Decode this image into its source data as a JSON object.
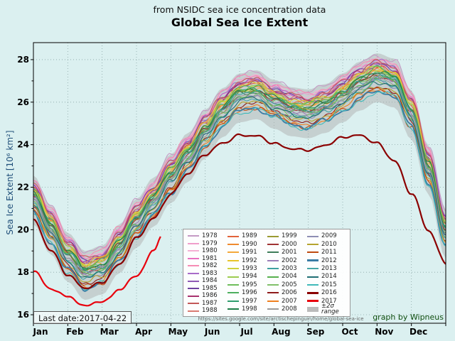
{
  "title": "Global Sea Ice Extent",
  "subtitle": "from NSIDC sea ice concentration data",
  "footer": {
    "last_date_label": "Last date:2017-04-22",
    "url": "https://sites.google.com/site/arctischepinguin/home/global-sea-ice",
    "credit": "graph by Wipneus"
  },
  "colors": {
    "background": "#dbf0f0",
    "grid": "#8aa5a5",
    "band_fill": "#b0b0b0",
    "band_swatch": "#bbbbbb",
    "frame": "#000000",
    "axis_label_blue": "#1f4e79",
    "url_gray": "#666666",
    "credit_green": "#0e4d0e"
  },
  "chart_data": {
    "type": "line",
    "title": "Global Sea Ice Extent",
    "subtitle": "from NSIDC sea ice concentration data",
    "xlabel": "",
    "ylabel": "Sea Ice Extent [10⁶ km²]",
    "x_tick_labels": [
      "Jan",
      "Feb",
      "Mar",
      "Apr",
      "May",
      "Jun",
      "Jul",
      "Aug",
      "Sep",
      "Oct",
      "Nov",
      "Dec"
    ],
    "y_ticks": [
      16,
      18,
      20,
      22,
      24,
      26,
      28
    ],
    "ylim": [
      15.6,
      28.8
    ],
    "grid": "dotted",
    "legend_position": "lower center",
    "band_label": "±2σ range",
    "sigma2": 1.15,
    "wiggle_amp": 0.09,
    "climatology": {
      "t_months": [
        0,
        0.5,
        1,
        1.5,
        2,
        2.5,
        3,
        3.5,
        4,
        4.5,
        5,
        5.5,
        6,
        6.5,
        7,
        7.5,
        8,
        8.5,
        9,
        9.5,
        10,
        10.5,
        11,
        11.5,
        12
      ],
      "extent": [
        21.4,
        20.0,
        18.7,
        17.85,
        18.1,
        19.1,
        20.3,
        21.3,
        22.4,
        23.4,
        24.5,
        25.5,
        26.2,
        26.35,
        25.9,
        25.55,
        25.45,
        25.7,
        26.2,
        26.75,
        27.15,
        26.9,
        25.4,
        22.8,
        19.8
      ]
    },
    "years": [
      {
        "year": "1978",
        "color": "#c49ac4",
        "anomaly": 1.05
      },
      {
        "year": "1979",
        "color": "#ef9ecb",
        "anomaly": 0.85
      },
      {
        "year": "1980",
        "color": "#f4b0d4",
        "anomaly": 0.85
      },
      {
        "year": "1981",
        "color": "#e86fc0",
        "anomaly": 0.75
      },
      {
        "year": "1982",
        "color": "#f58cb4",
        "anomaly": 0.95
      },
      {
        "year": "1983",
        "color": "#a86bc9",
        "anomaly": 0.75
      },
      {
        "year": "1984",
        "color": "#8f5bb5",
        "anomaly": 0.65
      },
      {
        "year": "1985",
        "color": "#6f42a0",
        "anomaly": 0.7
      },
      {
        "year": "1986",
        "color": "#a8326e",
        "anomaly": 0.6
      },
      {
        "year": "1987",
        "color": "#c25858",
        "anomaly": 0.75
      },
      {
        "year": "1988",
        "color": "#d97b72",
        "anomaly": 0.6
      },
      {
        "year": "1989",
        "color": "#e2633a",
        "anomaly": 0.45
      },
      {
        "year": "1990",
        "color": "#ef8a2e",
        "anomaly": 0.35
      },
      {
        "year": "1991",
        "color": "#f3a93a",
        "anomaly": 0.35
      },
      {
        "year": "1992",
        "color": "#e8c42a",
        "anomaly": 0.55
      },
      {
        "year": "1993",
        "color": "#cfd23c",
        "anomaly": 0.45
      },
      {
        "year": "1994",
        "color": "#9ccc50",
        "anomaly": 0.45
      },
      {
        "year": "1995",
        "color": "#6dbd5b",
        "anomaly": 0.25
      },
      {
        "year": "1996",
        "color": "#4daf5e",
        "anomaly": 0.4
      },
      {
        "year": "1997",
        "color": "#2f9e6e",
        "anomaly": 0.25
      },
      {
        "year": "1998",
        "color": "#1d7d46",
        "anomaly": 0.3
      },
      {
        "year": "1999",
        "color": "#9a9a32",
        "anomaly": 0.15
      },
      {
        "year": "2000",
        "color": "#a03434",
        "anomaly": 0.15
      },
      {
        "year": "2001",
        "color": "#3e7d5a",
        "anomaly": 0.2
      },
      {
        "year": "2002",
        "color": "#9b7fb8",
        "anomaly": 0.05
      },
      {
        "year": "2003",
        "color": "#3fa0a0",
        "anomaly": 0.15
      },
      {
        "year": "2004",
        "color": "#56b04e",
        "anomaly": 0.05
      },
      {
        "year": "2005",
        "color": "#7fc06a",
        "anomaly": -0.1
      },
      {
        "year": "2006",
        "color": "#8e1b1b",
        "anomaly": -0.35
      },
      {
        "year": "2007",
        "color": "#f07f1f",
        "anomaly": -0.5
      },
      {
        "year": "2008",
        "color": "#9a9a9a",
        "anomaly": 0.0
      },
      {
        "year": "2009",
        "color": "#8e8eb4",
        "anomaly": -0.1
      },
      {
        "year": "2010",
        "color": "#b5a42e",
        "anomaly": -0.35
      },
      {
        "year": "2011",
        "color": "#bf4a10",
        "anomaly": -0.55
      },
      {
        "year": "2012",
        "color": "#3a7ca5",
        "anomaly": -0.6,
        "width": 1.8
      },
      {
        "year": "2013",
        "color": "#46a6a6",
        "anomaly": -0.2
      },
      {
        "year": "2014",
        "color": "#1f6f74",
        "anomaly": -0.15
      },
      {
        "year": "2015",
        "color": "#3fb9b9",
        "anomaly": -0.65
      },
      {
        "year": "2016",
        "color": "#8b0000",
        "width": 2.2,
        "t": [
          0,
          0.5,
          1,
          1.5,
          2,
          2.5,
          3,
          3.5,
          4,
          4.5,
          5,
          5.5,
          6,
          6.5,
          7,
          7.5,
          8,
          8.5,
          9,
          9.5,
          10,
          10.5,
          11,
          11.5,
          12
        ],
        "y": [
          20.4,
          19.0,
          17.9,
          17.3,
          17.5,
          18.3,
          19.6,
          20.6,
          21.7,
          22.6,
          23.5,
          24.1,
          24.5,
          24.4,
          24.0,
          23.8,
          23.8,
          24.0,
          24.3,
          24.4,
          24.1,
          23.3,
          21.7,
          19.9,
          18.4
        ]
      },
      {
        "year": "2017",
        "color": "#e8000d",
        "width": 2.2,
        "t": [
          0,
          0.5,
          1,
          1.5,
          2,
          2.5,
          3,
          3.5,
          3.73
        ],
        "y": [
          18.1,
          17.2,
          16.8,
          16.5,
          16.6,
          17.1,
          17.9,
          19.0,
          19.7
        ]
      }
    ]
  }
}
